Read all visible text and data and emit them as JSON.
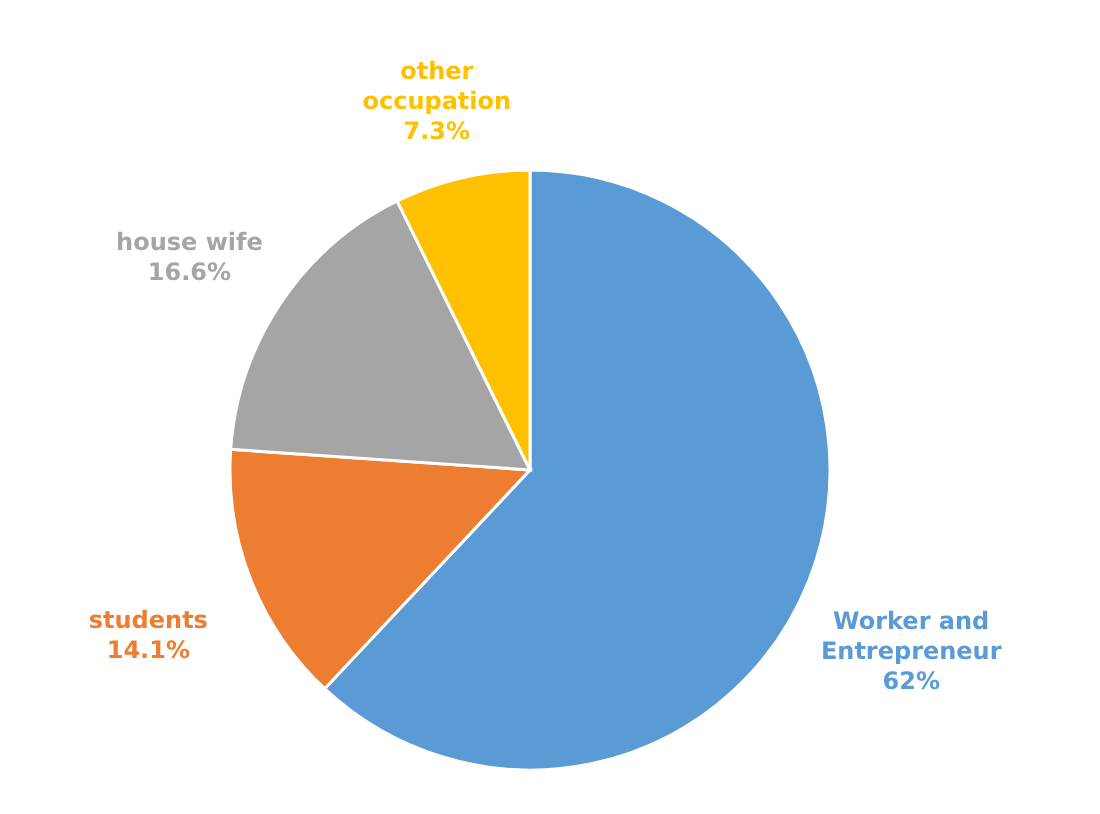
{
  "chart_data": {
    "type": "pie",
    "categories": [
      "Worker and Entrepreneur",
      "students",
      "house wife",
      "other occupation"
    ],
    "values": [
      62,
      14.1,
      16.6,
      7.3
    ],
    "colors": [
      "#5b9bd5",
      "#ed7d31",
      "#a5a5a5",
      "#ffc000"
    ],
    "value_labels": [
      "62%",
      "14.1%",
      "16.6%",
      "7.3%"
    ]
  }
}
